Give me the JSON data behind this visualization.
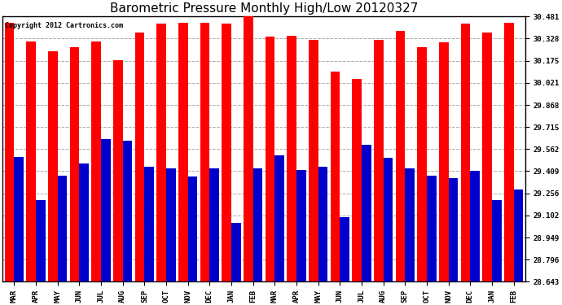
{
  "title": "Barometric Pressure Monthly High/Low 20120327",
  "copyright_text": "Copyright 2012 Cartronics.com",
  "categories": [
    "MAR",
    "APR",
    "MAY",
    "JUN",
    "JUL",
    "AUG",
    "SEP",
    "OCT",
    "NOV",
    "DEC",
    "JAN",
    "FEB",
    "MAR",
    "APR",
    "MAY",
    "JUN",
    "JUL",
    "AUG",
    "SEP",
    "OCT",
    "NOV",
    "DEC",
    "JAN",
    "FEB"
  ],
  "highs": [
    30.44,
    30.31,
    30.24,
    30.27,
    30.31,
    30.18,
    30.37,
    30.43,
    30.44,
    30.44,
    30.43,
    30.481,
    30.34,
    30.35,
    30.32,
    30.1,
    30.05,
    30.32,
    30.38,
    30.27,
    30.3,
    30.43,
    30.37,
    30.44
  ],
  "lows": [
    29.51,
    29.21,
    29.38,
    29.46,
    29.63,
    29.62,
    29.44,
    29.43,
    29.37,
    29.43,
    29.05,
    29.43,
    29.52,
    29.42,
    29.44,
    29.09,
    29.59,
    29.5,
    29.43,
    29.38,
    29.36,
    29.41,
    29.21,
    29.28
  ],
  "high_color": "#ff0000",
  "low_color": "#0000cc",
  "background_color": "#ffffff",
  "grid_color": "#aaaaaa",
  "yticks": [
    28.643,
    28.796,
    28.949,
    29.102,
    29.256,
    29.409,
    29.562,
    29.715,
    29.868,
    30.021,
    30.175,
    30.328,
    30.481
  ],
  "ymin": 28.643,
  "ymax": 30.481,
  "title_fontsize": 11,
  "tick_fontsize": 6.5,
  "bar_width": 0.44
}
